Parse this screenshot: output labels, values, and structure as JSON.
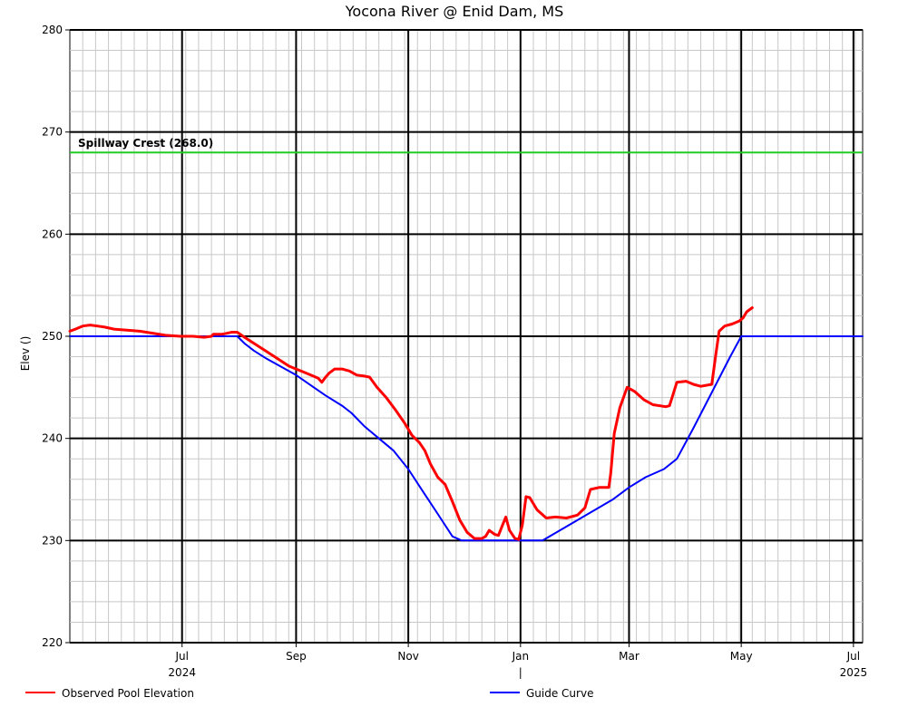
{
  "chart_data": {
    "type": "line",
    "title": "Yocona River @ Enid Dam, MS",
    "xlabel": "",
    "ylabel": "Elev ()",
    "ylim": [
      220,
      280
    ],
    "y_ticks": [
      220,
      230,
      240,
      250,
      260,
      270,
      280
    ],
    "xlim": [
      "2024-05-01",
      "2025-07-06"
    ],
    "x_ticks": [
      {
        "date": "2024-07-01",
        "label": "Jul",
        "sub": "2024"
      },
      {
        "date": "2024-09-01",
        "label": "Sep",
        "sub": ""
      },
      {
        "date": "2024-11-01",
        "label": "Nov",
        "sub": ""
      },
      {
        "date": "2025-01-01",
        "label": "Jan",
        "sub": "|"
      },
      {
        "date": "2025-03-01",
        "label": "Mar",
        "sub": ""
      },
      {
        "date": "2025-05-01",
        "label": "May",
        "sub": ""
      },
      {
        "date": "2025-07-01",
        "label": "Jul",
        "sub": "2025"
      }
    ],
    "grid": true,
    "legend_position": "bottom",
    "reference_lines": [
      {
        "label": "Spillway Crest (268.0)",
        "y": 268.0,
        "color": "#22cc22"
      }
    ],
    "series": [
      {
        "name": "Observed Pool Elevation",
        "color": "#ff0000",
        "points": [
          [
            "2024-05-01",
            250.5
          ],
          [
            "2024-05-04",
            250.7
          ],
          [
            "2024-05-08",
            251.0
          ],
          [
            "2024-05-12",
            251.1
          ],
          [
            "2024-05-16",
            251.0
          ],
          [
            "2024-05-20",
            250.9
          ],
          [
            "2024-05-25",
            250.7
          ],
          [
            "2024-06-01",
            250.6
          ],
          [
            "2024-06-08",
            250.5
          ],
          [
            "2024-06-15",
            250.3
          ],
          [
            "2024-06-22",
            250.1
          ],
          [
            "2024-06-30",
            250.0
          ],
          [
            "2024-07-07",
            250.0
          ],
          [
            "2024-07-13",
            249.9
          ],
          [
            "2024-07-17",
            250.0
          ],
          [
            "2024-07-18",
            250.2
          ],
          [
            "2024-07-23",
            250.2
          ],
          [
            "2024-07-28",
            250.4
          ],
          [
            "2024-07-31",
            250.4
          ],
          [
            "2024-08-04",
            249.9
          ],
          [
            "2024-08-10",
            249.2
          ],
          [
            "2024-08-16",
            248.5
          ],
          [
            "2024-08-22",
            247.8
          ],
          [
            "2024-08-28",
            247.1
          ],
          [
            "2024-09-01",
            246.8
          ],
          [
            "2024-09-05",
            246.5
          ],
          [
            "2024-09-09",
            246.2
          ],
          [
            "2024-09-13",
            245.9
          ],
          [
            "2024-09-15",
            245.5
          ],
          [
            "2024-09-17",
            246.0
          ],
          [
            "2024-09-19",
            246.4
          ],
          [
            "2024-09-22",
            246.8
          ],
          [
            "2024-09-26",
            246.8
          ],
          [
            "2024-09-30",
            246.6
          ],
          [
            "2024-10-04",
            246.2
          ],
          [
            "2024-10-08",
            246.1
          ],
          [
            "2024-10-11",
            246.0
          ],
          [
            "2024-10-15",
            245.0
          ],
          [
            "2024-10-20",
            244.0
          ],
          [
            "2024-10-25",
            242.8
          ],
          [
            "2024-10-30",
            241.5
          ],
          [
            "2024-11-03",
            240.3
          ],
          [
            "2024-11-07",
            239.6
          ],
          [
            "2024-11-10",
            238.8
          ],
          [
            "2024-11-13",
            237.5
          ],
          [
            "2024-11-17",
            236.2
          ],
          [
            "2024-11-21",
            235.5
          ],
          [
            "2024-11-25",
            233.8
          ],
          [
            "2024-11-29",
            232.0
          ],
          [
            "2024-12-03",
            230.8
          ],
          [
            "2024-12-07",
            230.2
          ],
          [
            "2024-12-11",
            230.2
          ],
          [
            "2024-12-13",
            230.4
          ],
          [
            "2024-12-15",
            231.0
          ],
          [
            "2024-12-18",
            230.6
          ],
          [
            "2024-12-20",
            230.5
          ],
          [
            "2024-12-22",
            231.4
          ],
          [
            "2024-12-24",
            232.3
          ],
          [
            "2024-12-26",
            231.0
          ],
          [
            "2024-12-29",
            230.2
          ],
          [
            "2024-12-31",
            230.1
          ],
          [
            "2025-01-02",
            231.5
          ],
          [
            "2025-01-04",
            234.3
          ],
          [
            "2025-01-06",
            234.2
          ],
          [
            "2025-01-10",
            233.0
          ],
          [
            "2025-01-15",
            232.2
          ],
          [
            "2025-01-20",
            232.3
          ],
          [
            "2025-01-26",
            232.2
          ],
          [
            "2025-02-01",
            232.5
          ],
          [
            "2025-02-05",
            233.2
          ],
          [
            "2025-02-08",
            235.0
          ],
          [
            "2025-02-13",
            235.2
          ],
          [
            "2025-02-18",
            235.2
          ],
          [
            "2025-02-19",
            236.5
          ],
          [
            "2025-02-21",
            240.5
          ],
          [
            "2025-02-24",
            243.0
          ],
          [
            "2025-02-28",
            245.0
          ],
          [
            "2025-03-04",
            244.6
          ],
          [
            "2025-03-09",
            243.8
          ],
          [
            "2025-03-14",
            243.3
          ],
          [
            "2025-03-21",
            243.1
          ],
          [
            "2025-03-23",
            243.2
          ],
          [
            "2025-03-27",
            245.5
          ],
          [
            "2025-04-01",
            245.6
          ],
          [
            "2025-04-05",
            245.3
          ],
          [
            "2025-04-09",
            245.1
          ],
          [
            "2025-04-15",
            245.3
          ],
          [
            "2025-04-17",
            248.0
          ],
          [
            "2025-04-19",
            250.5
          ],
          [
            "2025-04-22",
            251.0
          ],
          [
            "2025-04-26",
            251.2
          ],
          [
            "2025-04-30",
            251.5
          ],
          [
            "2025-05-02",
            251.8
          ],
          [
            "2025-05-04",
            252.4
          ],
          [
            "2025-05-07",
            252.8
          ]
        ]
      },
      {
        "name": "Guide Curve",
        "color": "#0000ff",
        "points": [
          [
            "2024-05-01",
            250.0
          ],
          [
            "2024-07-31",
            250.0
          ],
          [
            "2024-08-04",
            249.3
          ],
          [
            "2024-08-09",
            248.6
          ],
          [
            "2024-08-16",
            247.8
          ],
          [
            "2024-08-24",
            247.0
          ],
          [
            "2024-09-01",
            246.2
          ],
          [
            "2024-09-09",
            245.2
          ],
          [
            "2024-09-17",
            244.2
          ],
          [
            "2024-09-26",
            243.2
          ],
          [
            "2024-10-01",
            242.5
          ],
          [
            "2024-10-08",
            241.2
          ],
          [
            "2024-10-16",
            240.0
          ],
          [
            "2024-10-24",
            238.8
          ],
          [
            "2024-11-01",
            237.0
          ],
          [
            "2024-11-09",
            234.8
          ],
          [
            "2024-11-17",
            232.6
          ],
          [
            "2024-11-25",
            230.4
          ],
          [
            "2024-11-30",
            230.0
          ],
          [
            "2025-01-13",
            230.0
          ],
          [
            "2025-02-01",
            232.0
          ],
          [
            "2025-02-20",
            234.0
          ],
          [
            "2025-03-01",
            235.2
          ],
          [
            "2025-03-10",
            236.2
          ],
          [
            "2025-03-20",
            237.0
          ],
          [
            "2025-03-27",
            238.0
          ],
          [
            "2025-04-05",
            241.0
          ],
          [
            "2025-04-15",
            244.5
          ],
          [
            "2025-04-25",
            248.0
          ],
          [
            "2025-05-01",
            250.0
          ],
          [
            "2025-07-06",
            250.0
          ]
        ]
      }
    ]
  }
}
